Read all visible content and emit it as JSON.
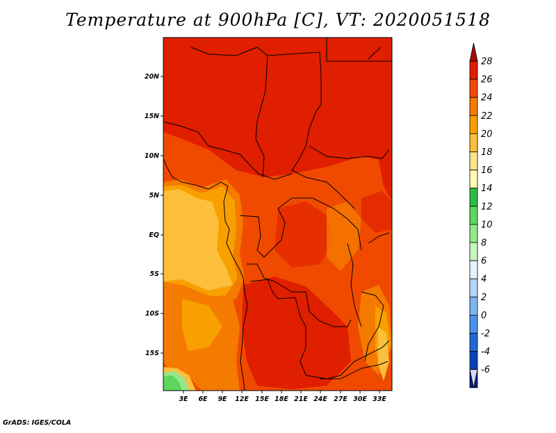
{
  "title": "Temperature at 900hPa [C], VT: 2020051518",
  "footer": "GrADS: IGES/COLA",
  "map": {
    "lat_labels": [
      "20N",
      "15N",
      "10N",
      "5N",
      "EQ",
      "5S",
      "10S",
      "15S"
    ],
    "lon_labels": [
      "3E",
      "6E",
      "9E",
      "12E",
      "15E",
      "18E",
      "21E",
      "24E",
      "27E",
      "30E",
      "33E"
    ]
  },
  "colorbar": {
    "units": "C",
    "levels": [
      "28",
      "26",
      "24",
      "22",
      "20",
      "18",
      "16",
      "14",
      "12",
      "10",
      "8",
      "6",
      "4",
      "2",
      "0",
      "-2",
      "-4",
      "-6"
    ],
    "colors": [
      "#a50a00",
      "#e01e00",
      "#f04a00",
      "#f57a00",
      "#f8a000",
      "#fbbf3c",
      "#fde58c",
      "#fdfab4",
      "#2ebc44",
      "#5ed65e",
      "#96e68c",
      "#c8f5c0",
      "#e6f2fc",
      "#b5d6f7",
      "#7db4ee",
      "#4a92e6",
      "#2168d2",
      "#0a44b4",
      "#0a1e82",
      "#d8d8f5"
    ]
  }
}
